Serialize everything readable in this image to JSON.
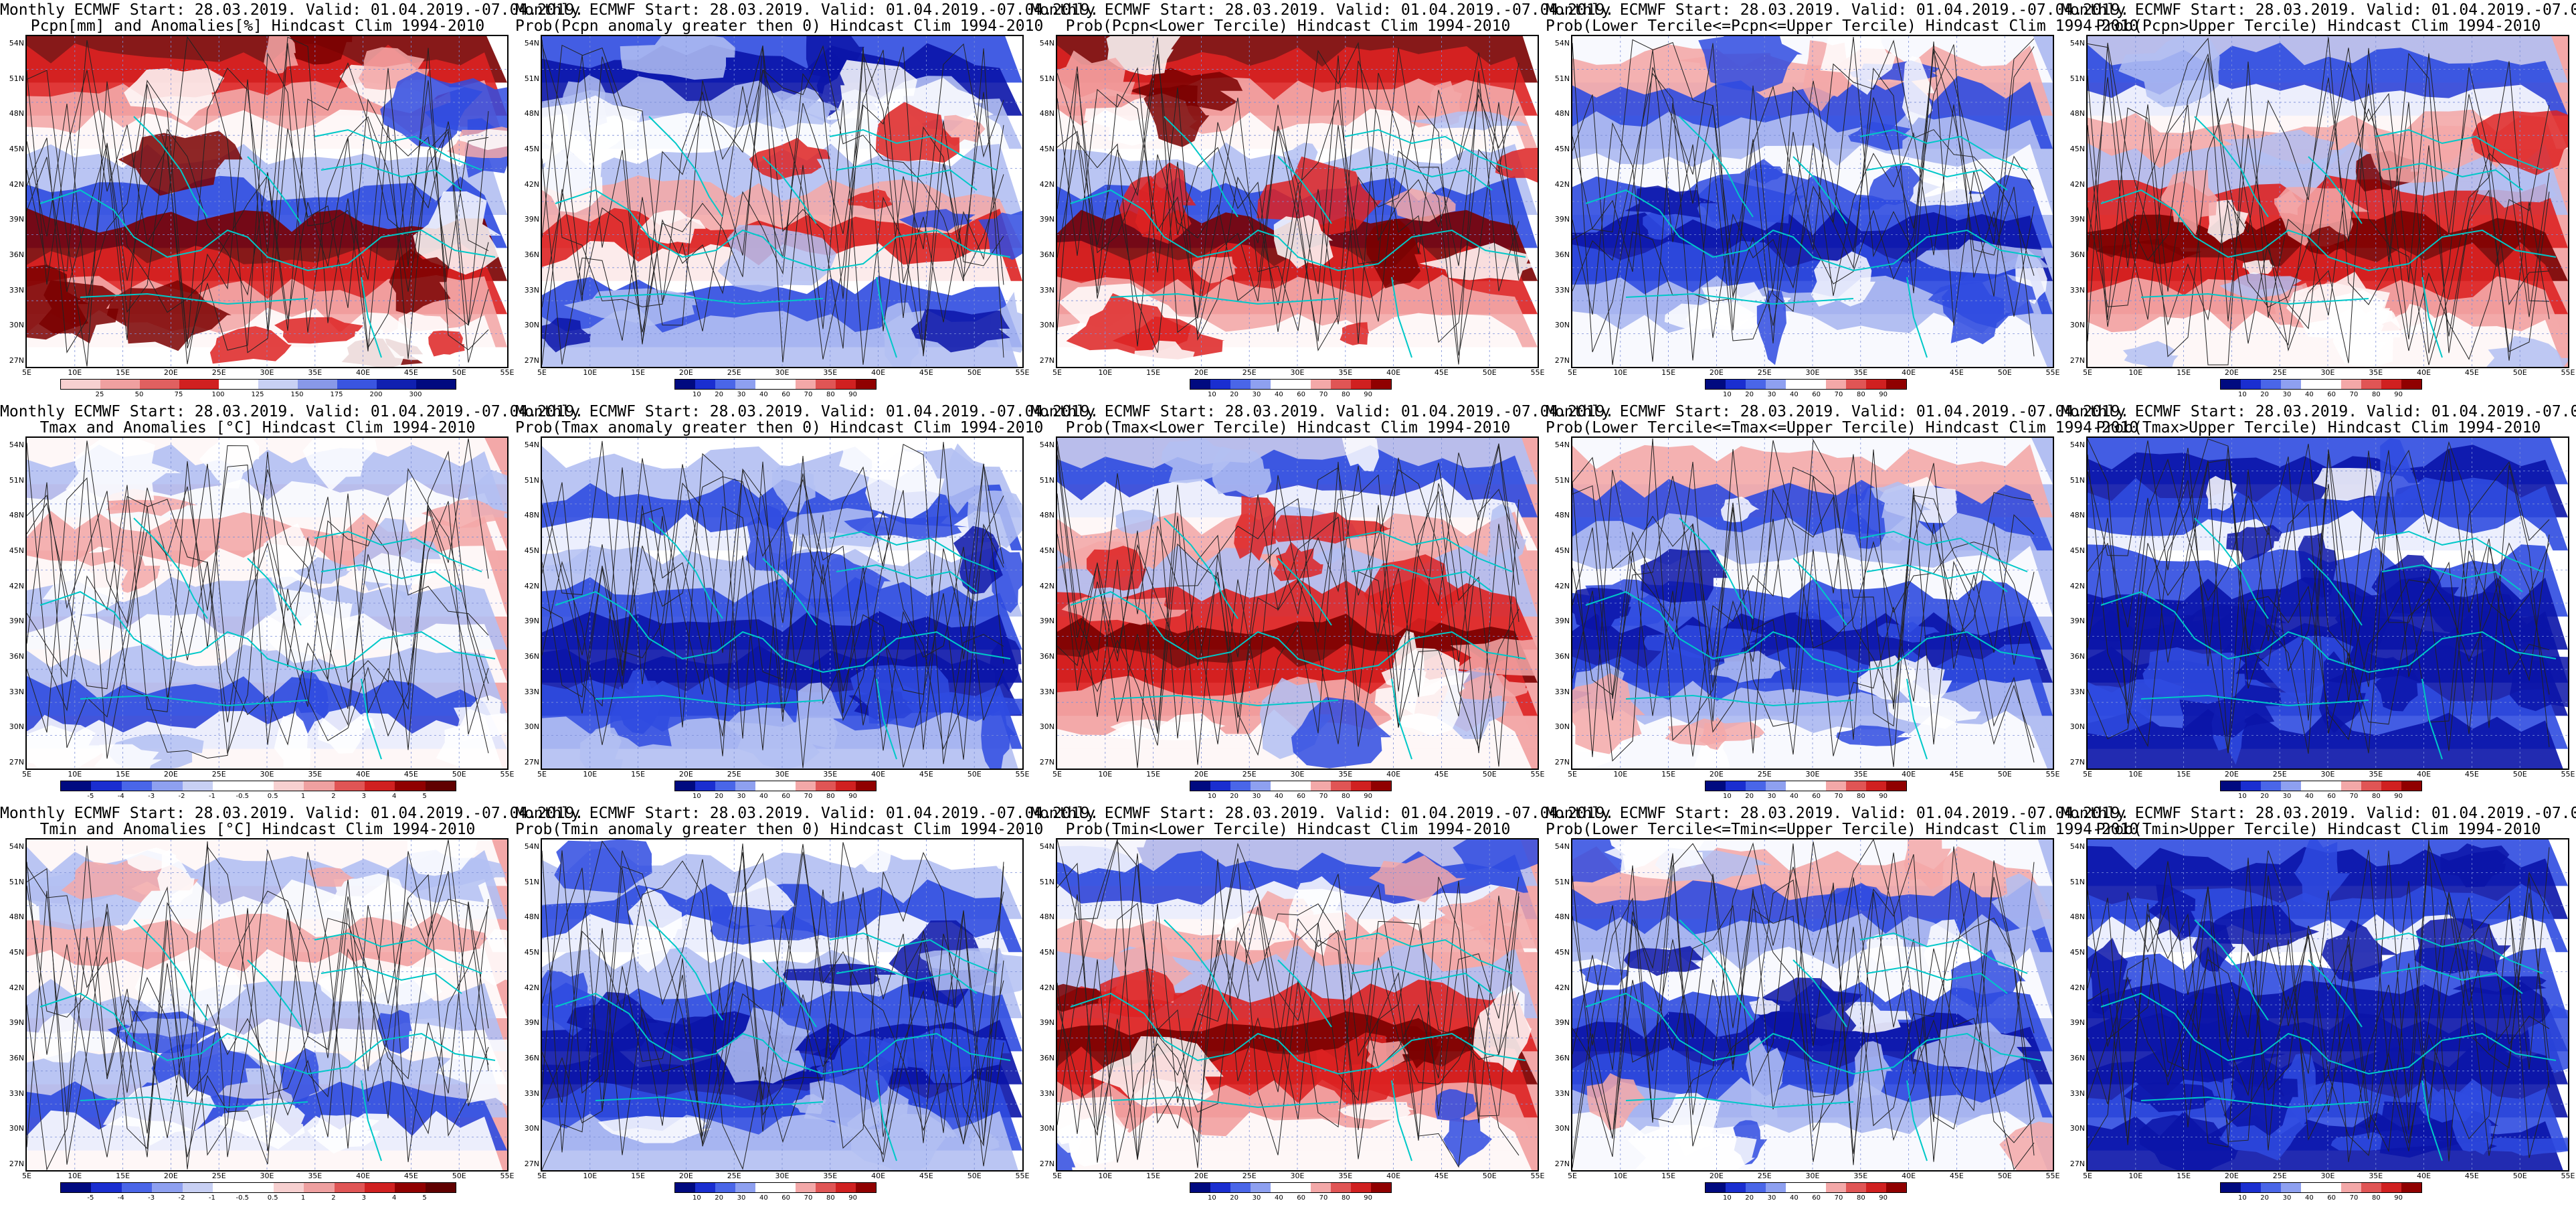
{
  "title_line1": "Monthly ECMWF Start: 28.03.2019. Valid: 01.04.2019.-07.04.2019.",
  "latitudes": [
    "54N",
    "51N",
    "48N",
    "45N",
    "42N",
    "39N",
    "36N",
    "33N",
    "30N",
    "27N"
  ],
  "longitudes": [
    "5E",
    "10E",
    "15E",
    "20E",
    "25E",
    "30E",
    "35E",
    "40E",
    "45E",
    "50E",
    "55E"
  ],
  "anomaly_bar": {
    "pcpn": [
      "25",
      "50",
      "75",
      "100",
      "125",
      "150",
      "175",
      "200",
      "300"
    ],
    "temp": [
      "-5",
      "-4",
      "-3",
      "-2",
      "-1",
      "-0.5",
      "0.5",
      "1",
      "2",
      "3",
      "4",
      "5"
    ]
  },
  "prob_bar": [
    "10",
    "20",
    "30",
    "40",
    "60",
    "70",
    "80",
    "90"
  ],
  "colors": {
    "dark_blue": "#0a14a8",
    "blue": "#2f4be0",
    "light_blue": "#b3bff2",
    "white": "#ffffff",
    "pink": "#f3a8a8",
    "red": "#dd2222",
    "dark_red": "#7a0000",
    "coast": "#00c8c8",
    "contour": "#222222"
  },
  "panels": [
    {
      "title2": "Pcpn[mm] and Anomalies[%] Hindcast Clim 1994-2010",
      "bar": "pcpn",
      "scheme": "redtop"
    },
    {
      "title2": "Prob(Pcpn anomaly greater then 0) Hindcast Clim 1994-2010",
      "bar": "prob",
      "scheme": "bluetop"
    },
    {
      "title2": "Prob(Pcpn<Lower Tercile) Hindcast Clim 1994-2010",
      "bar": "prob",
      "scheme": "redtop"
    },
    {
      "title2": "Prob(Lower Tercile<=Pcpn<=Upper Tercile) Hindcast Clim 1994-2010",
      "bar": "prob",
      "scheme": "bluemix"
    },
    {
      "title2": "Prob(Pcpn>Upper Tercile) Hindcast Clim 1994-2010",
      "bar": "prob",
      "scheme": "redsouth"
    },
    {
      "title2": "Tmax and Anomalies [°C] Hindcast Clim 1994-2010",
      "bar": "temp",
      "scheme": "lightmix"
    },
    {
      "title2": "Prob(Tmax anomaly greater then 0) Hindcast Clim 1994-2010",
      "bar": "prob",
      "scheme": "bluesouth"
    },
    {
      "title2": "Prob(Tmax<Lower Tercile) Hindcast Clim 1994-2010",
      "bar": "prob",
      "scheme": "redsouth"
    },
    {
      "title2": "Prob(Lower Tercile<=Tmax<=Upper Tercile) Hindcast Clim 1994-2010",
      "bar": "prob",
      "scheme": "bluemix"
    },
    {
      "title2": "Prob(Tmax>Upper Tercile) Hindcast Clim 1994-2010",
      "bar": "prob",
      "scheme": "deepblue"
    },
    {
      "title2": "Tmin and Anomalies [°C] Hindcast Clim 1994-2010",
      "bar": "temp",
      "scheme": "lightmix"
    },
    {
      "title2": "Prob(Tmin anomaly greater then 0) Hindcast Clim 1994-2010",
      "bar": "prob",
      "scheme": "bluesouth"
    },
    {
      "title2": "Prob(Tmin<Lower Tercile) Hindcast Clim 1994-2010",
      "bar": "prob",
      "scheme": "redsouth"
    },
    {
      "title2": "Prob(Lower Tercile<=Tmin<=Upper Tercile) Hindcast Clim 1994-2010",
      "bar": "prob",
      "scheme": "bluemix"
    },
    {
      "title2": "Prob(Tmin>Upper Tercile) Hindcast Clim 1994-2010",
      "bar": "prob",
      "scheme": "deepblue"
    }
  ]
}
